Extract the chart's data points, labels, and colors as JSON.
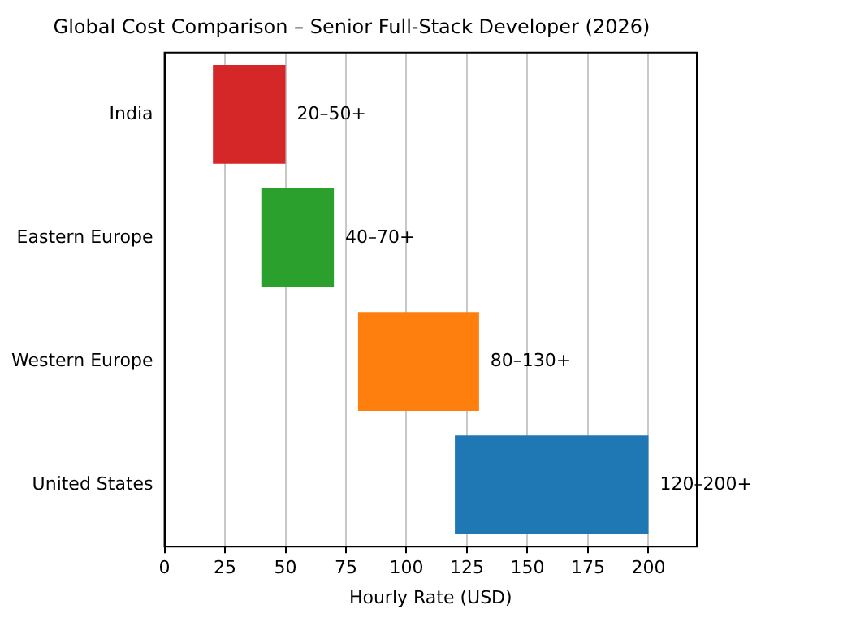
{
  "chart_data": {
    "type": "bar",
    "orientation": "horizontal",
    "title": "Global Cost Comparison – Senior Full-Stack Developer (2026)",
    "xlabel": "Hourly Rate (USD)",
    "categories": [
      "India",
      "Eastern Europe",
      "Western Europe",
      "United States"
    ],
    "base": [
      20,
      40,
      80,
      120
    ],
    "values": [
      30,
      30,
      50,
      80
    ],
    "value_labels": [
      "20–50+",
      "40–70+",
      "80–130+",
      "120–200+"
    ],
    "colors": [
      "#d62728",
      "#2ca02c",
      "#ff7f0e",
      "#1f77b4"
    ],
    "xlim": [
      0,
      220
    ],
    "xticks": [
      0,
      25,
      50,
      75,
      100,
      125,
      150,
      175,
      200
    ],
    "grid": "x"
  }
}
